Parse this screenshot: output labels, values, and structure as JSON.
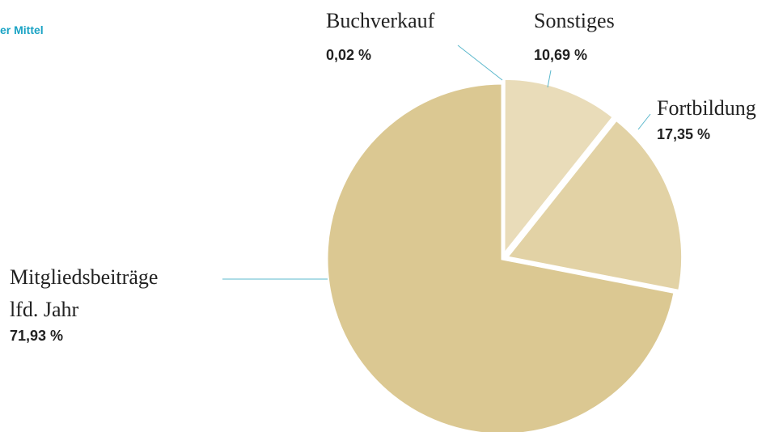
{
  "chart_data": {
    "type": "pie",
    "title": "er Mittel",
    "categories": [
      "Buchverkauf",
      "Sonstiges",
      "Fortbildung",
      "Mitgliedsbeiträge\nlfd. Jahr"
    ],
    "values": [
      0.02,
      10.69,
      17.35,
      71.93
    ],
    "value_labels": [
      "0,02 %",
      "10,69 %",
      "17,35 %",
      "71,93 %"
    ],
    "colors": [
      "#d9c58f",
      "#e9dcb9",
      "#e2d2a5",
      "#dbc892"
    ]
  }
}
